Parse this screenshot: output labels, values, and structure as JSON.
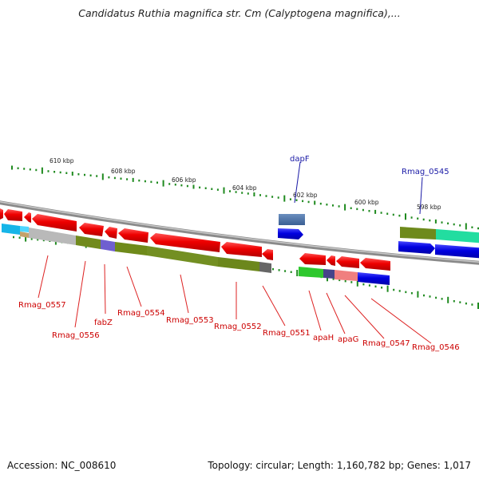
{
  "title": "Candidatus Ruthia magnifica str. Cm (Calyptogena magnifica),...",
  "accession": "Accession: NC_008610",
  "topology": "Topology: circular; Length: 1,160,782 bp; Genes: 1,017",
  "scale_labels": [
    "610 kbp",
    "608 kbp",
    "606 kbp",
    "604 kbp",
    "602 kbp",
    "600 kbp",
    "598 kbp"
  ],
  "top_gene_labels": [
    {
      "text": "dapF",
      "color": "#1a1aa6"
    },
    {
      "text": "Rmag_0545",
      "color": "#1a1aa6"
    }
  ],
  "bottom_gene_labels": [
    {
      "text": "Rmag_0557",
      "color": "#cc0000"
    },
    {
      "text": "Rmag_0556",
      "color": "#cc0000"
    },
    {
      "text": "fabZ",
      "color": "#cc0000"
    },
    {
      "text": "Rmag_0554",
      "color": "#cc0000"
    },
    {
      "text": "Rmag_0553",
      "color": "#cc0000"
    },
    {
      "text": "Rmag_0552",
      "color": "#cc0000"
    },
    {
      "text": "Rmag_0551",
      "color": "#cc0000"
    },
    {
      "text": "apaH",
      "color": "#cc0000"
    },
    {
      "text": "apaG",
      "color": "#cc0000"
    },
    {
      "text": "Rmag_0547",
      "color": "#cc0000"
    },
    {
      "text": "Rmag_0546",
      "color": "#cc0000"
    }
  ],
  "colors": {
    "backbone": "#7f7f7f",
    "reverse_strand_gene": "#ee0000",
    "forward_strand_gene": "#0000dd",
    "tick": "#1f8a1f"
  }
}
